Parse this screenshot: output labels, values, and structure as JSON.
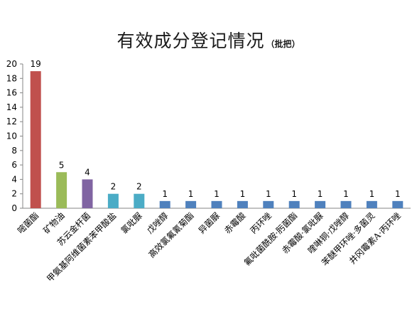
{
  "chart_data": {
    "type": "bar",
    "title": "有效成分登记情况",
    "title_unit": "（批把）",
    "xlabel": "",
    "ylabel": "",
    "ylim": [
      0,
      20
    ],
    "yticks": [
      0,
      2,
      4,
      6,
      8,
      10,
      12,
      14,
      16,
      18,
      20
    ],
    "grid": false,
    "legend": "none",
    "categories": [
      "嘧菌酯",
      "矿物油",
      "苏云金杆菌",
      "甲氨基阿维菌素苯甲酸盐",
      "氯吡脲",
      "戊唑醇",
      "高效氯氟氰菊酯",
      "异菌脲",
      "赤霉酸",
      "丙环唑",
      "氟吡菌酰胺·肟菌酯",
      "赤霉酸·氯吡脲",
      "喹啉铜·戊唑醇",
      "苯醚甲环唑·多菌灵",
      "井冈霉素A·丙环唑"
    ],
    "values": [
      19,
      5,
      4,
      2,
      2,
      1,
      1,
      1,
      1,
      1,
      1,
      1,
      1,
      1,
      1
    ],
    "colors": [
      "#c0504d",
      "#9bbb59",
      "#8064a2",
      "#4bacc6",
      "#4bacc6",
      "#4f81bd",
      "#4f81bd",
      "#4f81bd",
      "#4f81bd",
      "#4f81bd",
      "#4f81bd",
      "#4f81bd",
      "#4f81bd",
      "#4f81bd",
      "#4f81bd"
    ]
  }
}
